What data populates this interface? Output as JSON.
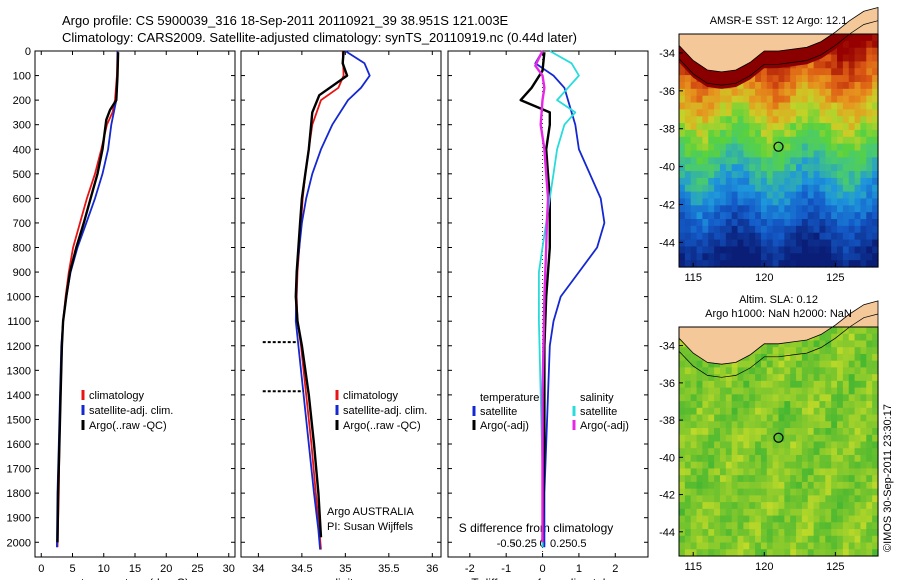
{
  "header": {
    "line1": "Argo profile: CS 5900039_316 18-Sep-2011 20110921_39 38.951S 121.003E",
    "line2": "Climatology: CARS2009. Satellite-adjusted climatology: synTS_20110919.nc (0.44d later)"
  },
  "stamp": "©IMOS 30-Sep-2011 23:30:17",
  "colors": {
    "climatology": "#e81414",
    "satellite": "#1428d2",
    "argo": "#000000",
    "cyan": "#28dcdc",
    "magenta": "#e628e6",
    "land": "#f5c89a",
    "coast": "#8a0000"
  },
  "chart_data": [
    {
      "type": "line",
      "id": "temperature",
      "xlabel": "temperature (deg C)",
      "ylabel": "",
      "xlim": [
        -1,
        31
      ],
      "ylim": [
        2060,
        0
      ],
      "xticks": [
        0,
        5,
        10,
        15,
        20,
        25,
        30
      ],
      "xtick_labels": [
        "0",
        "5",
        "10",
        "15",
        "20",
        "25",
        "30"
      ],
      "yticks": [
        0,
        100,
        200,
        300,
        400,
        500,
        600,
        700,
        800,
        900,
        1000,
        1100,
        1200,
        1300,
        1400,
        1500,
        1600,
        1700,
        1800,
        1900,
        2000
      ],
      "ytick_labels": [
        "0",
        "100",
        "200",
        "300",
        "400",
        "500",
        "600",
        "700",
        "800",
        "900",
        "1000",
        "1100",
        "1200",
        "1300",
        "1400",
        "1500",
        "1600",
        "1700",
        "1800",
        "1900",
        "2000"
      ],
      "legend": {
        "position": "lower-right",
        "entries": [
          "climatology",
          "satellite-adj. clim.",
          "Argo(..raw -QC)"
        ]
      },
      "series": [
        {
          "name": "climatology",
          "color": "#e81414",
          "x": [
            12.2,
            12.1,
            11.8,
            11.4,
            10.5,
            9.6,
            8.6,
            7.3,
            6.2,
            5.1,
            4.4,
            3.9,
            3.5,
            3.3,
            3.1,
            2.9,
            2.8,
            2.6
          ],
          "y": [
            0,
            100,
            200,
            250,
            300,
            400,
            500,
            600,
            700,
            800,
            900,
            1000,
            1100,
            1200,
            1400,
            1600,
            1800,
            2020
          ]
        },
        {
          "name": "satellite-adj. clim.",
          "color": "#1428d2",
          "x": [
            12.2,
            12.2,
            12.0,
            11.6,
            11.2,
            10.7,
            9.8,
            8.6,
            7.2,
            5.8,
            4.7,
            4.0,
            3.5,
            3.2,
            3.0,
            2.8,
            2.6,
            2.5
          ],
          "y": [
            0,
            100,
            200,
            250,
            300,
            400,
            500,
            600,
            700,
            800,
            900,
            1000,
            1100,
            1200,
            1400,
            1600,
            1800,
            2020
          ]
        },
        {
          "name": "Argo(..raw -QC)",
          "color": "#000000",
          "x": [
            12.3,
            12.2,
            12.0,
            11.0,
            10.4,
            9.8,
            9.0,
            7.9,
            6.8,
            5.6,
            4.6,
            4.0,
            3.5,
            3.3,
            3.1,
            2.9,
            2.7,
            2.6
          ],
          "y": [
            5,
            100,
            200,
            240,
            280,
            400,
            500,
            600,
            700,
            800,
            900,
            1000,
            1100,
            1200,
            1400,
            1600,
            1800,
            2000
          ]
        }
      ]
    },
    {
      "type": "line",
      "id": "salinity",
      "xlabel": "salinity",
      "ylabel": "",
      "xlim": [
        33.8,
        36.1
      ],
      "ylim": [
        2060,
        0
      ],
      "xticks": [
        34,
        34.5,
        35,
        35.5,
        36
      ],
      "xtick_labels": [
        "34",
        "34.5",
        "35",
        "35.5",
        "36"
      ],
      "legend": {
        "position": "lower-right",
        "entries": [
          "climatology",
          "satellite-adj. clim.",
          "Argo(..raw -QC)"
        ]
      },
      "annotation": [
        "Argo AUSTRALIA",
        "PI: Susan Wijffels"
      ],
      "series": [
        {
          "name": "climatology",
          "color": "#e81414",
          "x": [
            34.97,
            34.98,
            34.92,
            34.72,
            34.62,
            34.58,
            34.54,
            34.51,
            34.49,
            34.47,
            34.45,
            34.44,
            34.45,
            34.49,
            34.55,
            34.61,
            34.66,
            34.7,
            34.72
          ],
          "y": [
            0,
            100,
            150,
            200,
            300,
            400,
            500,
            600,
            700,
            800,
            900,
            1000,
            1100,
            1200,
            1400,
            1600,
            1800,
            1950,
            2030
          ]
        },
        {
          "name": "satellite-adj. clim.",
          "color": "#1428d2",
          "x": [
            35.0,
            35.22,
            35.28,
            35.18,
            35.03,
            34.85,
            34.72,
            34.62,
            34.55,
            34.5,
            34.47,
            34.44,
            34.43,
            34.46,
            34.52,
            34.58,
            34.64,
            34.69,
            34.71
          ],
          "y": [
            0,
            50,
            100,
            150,
            200,
            300,
            400,
            500,
            600,
            700,
            800,
            900,
            1100,
            1200,
            1400,
            1600,
            1800,
            1950,
            2030
          ]
        },
        {
          "name": "Argo(..raw -QC)",
          "color": "#000000",
          "x": [
            34.98,
            34.97,
            35.02,
            34.7,
            34.62,
            34.58,
            34.54,
            34.5,
            34.48,
            34.46,
            34.44,
            34.43,
            34.45,
            34.5,
            34.58,
            34.64,
            34.69,
            34.72
          ],
          "y": [
            0,
            50,
            100,
            180,
            250,
            400,
            500,
            600,
            700,
            800,
            900,
            1000,
            1100,
            1200,
            1400,
            1600,
            1800,
            1980
          ]
        }
      ],
      "outliers": [
        {
          "y": 1185,
          "x_from": 34.05,
          "x_to": 34.45
        },
        {
          "y": 1385,
          "x_from": 34.05,
          "x_to": 34.52
        }
      ]
    },
    {
      "type": "line",
      "id": "differences",
      "xlabel": "T difference from climatology",
      "top_label": "S difference from climatology",
      "xlim": [
        -2.6,
        2.9
      ],
      "ylim": [
        2060,
        0
      ],
      "xticks": [
        -2,
        -1,
        0,
        1,
        2
      ],
      "xtick_labels": [
        "-2",
        "-1",
        "0",
        "1",
        "2"
      ],
      "sticks": [
        -1.0,
        -0.5,
        0,
        0.5,
        1.0
      ],
      "stick_labels": [
        "-0.5",
        "-0.25",
        "0",
        "0.25",
        "0.5"
      ],
      "legend": {
        "position": "lower-center",
        "temp_title": "temperature",
        "sal_title": "salinity",
        "temp_entries": [
          "satellite",
          "Argo(-adj)"
        ],
        "sal_entries": [
          "satellite",
          "Argo(-adj)"
        ]
      },
      "series": [
        {
          "name": "T satellite",
          "color": "#1428d2",
          "x": [
            0,
            -0.2,
            0.3,
            0.6,
            0.7,
            0.9,
            1.0,
            1.3,
            1.6,
            1.7,
            1.5,
            1.0,
            0.5,
            0.3,
            0.2,
            0.15,
            0.1,
            0.05,
            0.05
          ],
          "y": [
            0,
            50,
            100,
            150,
            200,
            300,
            400,
            500,
            600,
            700,
            800,
            900,
            1000,
            1100,
            1200,
            1400,
            1600,
            1800,
            2020
          ]
        },
        {
          "name": "T Argo(-adj)",
          "color": "#000000",
          "x": [
            0.05,
            0.0,
            -0.3,
            -0.6,
            0.2,
            0.2,
            0.1,
            0.15,
            0.2,
            0.2,
            0.2,
            0.15,
            0.1,
            0.05,
            0.05,
            0.05,
            0.0
          ],
          "y": [
            5,
            80,
            150,
            200,
            250,
            300,
            400,
            500,
            600,
            700,
            800,
            900,
            1000,
            1200,
            1400,
            1600,
            2000
          ]
        },
        {
          "name": "S satellite",
          "color": "#28dcdc",
          "x": [
            0.2,
            0.8,
            1.0,
            0.7,
            0.4,
            0.9,
            0.6,
            0.4,
            0.3,
            0.2,
            0.1,
            0.0,
            -0.1,
            -0.1,
            -0.05,
            0.0,
            0.0
          ],
          "y": [
            0,
            50,
            100,
            150,
            200,
            250,
            300,
            400,
            500,
            600,
            700,
            800,
            900,
            1100,
            1400,
            1700,
            2020
          ]
        },
        {
          "name": "S Argo(-adj)",
          "color": "#e628e6",
          "x": [
            0.0,
            -0.2,
            0.0,
            0.05,
            0.0,
            -0.05,
            0.05,
            0.1,
            0.15,
            0.12,
            0.1,
            0.05,
            0.0,
            0.0,
            0.0
          ],
          "y": [
            0,
            60,
            100,
            150,
            200,
            300,
            400,
            500,
            600,
            700,
            800,
            1000,
            1400,
            1700,
            2000
          ]
        }
      ]
    }
  ],
  "maps": [
    {
      "id": "sst-map",
      "title": [
        "AMSR-E SST: 12 Argo: 12.1"
      ],
      "xticks": [
        115,
        120,
        125
      ],
      "yticks": [
        -34,
        -36,
        -38,
        -40,
        -42,
        -44
      ],
      "xlim": [
        114,
        128
      ],
      "ylim": [
        -45.3,
        -33
      ],
      "marker": {
        "lon": 121.0,
        "lat": -38.95
      }
    },
    {
      "id": "sla-map",
      "title": [
        "Altim. SLA: 0.12",
        "Argo h1000: NaN h2000: NaN"
      ],
      "xticks": [
        115,
        120,
        125
      ],
      "yticks": [
        -34,
        -36,
        -38,
        -40,
        -42,
        -44
      ],
      "xlim": [
        114,
        128
      ],
      "ylim": [
        -45.3,
        -33
      ],
      "marker": {
        "lon": 121.0,
        "lat": -38.95
      }
    }
  ]
}
